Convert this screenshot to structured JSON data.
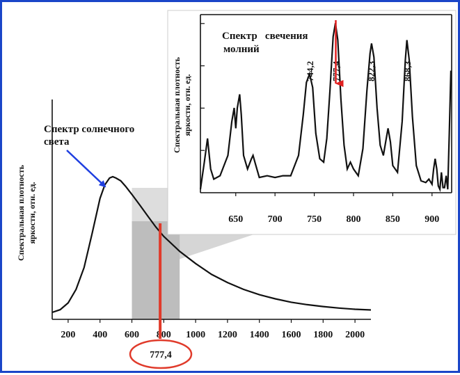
{
  "chart_data": [
    {
      "type": "line",
      "title": "Спектр солнечного света",
      "title_lines": [
        "Спектр солнечного",
        "света"
      ],
      "ylabel_lines": [
        "Спектральная плотность",
        "яркости, отн. ед."
      ],
      "xlabel": "",
      "xlim": [
        100,
        2100
      ],
      "ylim": [
        0,
        1
      ],
      "xticks": [
        200,
        400,
        600,
        800,
        1000,
        1200,
        1400,
        1600,
        1800,
        2000
      ],
      "series": [
        {
          "x": [
            100,
            150,
            200,
            250,
            300,
            350,
            400,
            430,
            460,
            480,
            500,
            530,
            560,
            600,
            650,
            700,
            750,
            800,
            900,
            1000,
            1100,
            1200,
            1300,
            1400,
            1500,
            1600,
            1700,
            1800,
            1900,
            2000,
            2100
          ],
          "values": [
            0.0,
            0.02,
            0.07,
            0.17,
            0.33,
            0.58,
            0.84,
            0.94,
            0.99,
            1.0,
            0.99,
            0.97,
            0.93,
            0.87,
            0.79,
            0.71,
            0.63,
            0.56,
            0.45,
            0.36,
            0.28,
            0.22,
            0.17,
            0.13,
            0.1,
            0.075,
            0.057,
            0.043,
            0.032,
            0.023,
            0.018
          ]
        }
      ],
      "highlight_band": [
        600,
        900
      ],
      "marker": {
        "x": 777.4,
        "label": "777,4"
      },
      "colors": {
        "curve": "#111111",
        "band": "#bdbdbd",
        "marker": "#e03a2a",
        "arrow": "#1f3fe0"
      }
    },
    {
      "type": "line",
      "title_lines": [
        "Спектр   свечения",
        "молний"
      ],
      "ylabel_lines": [
        "Спектральная плотность",
        "яркости, отн. ед."
      ],
      "xlabel": "",
      "xlim": [
        605,
        925
      ],
      "ylim": [
        0,
        1.05
      ],
      "xticks": [
        650,
        700,
        750,
        800,
        850,
        900
      ],
      "peak_labels": [
        "744,2",
        "777,4",
        "822,3",
        "868,3"
      ],
      "peak_positions": [
        744.2,
        777.4,
        822.3,
        868.3
      ],
      "arrow_at": 777.4,
      "series": [
        {
          "x": [
            605,
            610,
            614,
            618,
            622,
            630,
            640,
            645,
            648,
            650,
            652,
            655,
            657,
            660,
            665,
            670,
            672,
            675,
            680,
            690,
            700,
            710,
            720,
            730,
            736,
            740,
            744,
            748,
            752,
            757,
            762,
            766,
            770,
            774,
            777,
            780,
            784,
            788,
            792,
            796,
            800,
            806,
            812,
            817,
            821,
            823,
            826,
            830,
            834,
            838,
            841,
            844,
            847,
            850,
            856,
            862,
            866,
            868,
            871,
            875,
            880,
            886,
            892,
            896,
            900,
            902,
            904,
            906,
            908,
            910,
            912,
            914,
            916,
            918,
            920,
            922,
            924
          ],
          "values": [
            0.02,
            0.18,
            0.32,
            0.14,
            0.08,
            0.1,
            0.22,
            0.42,
            0.5,
            0.38,
            0.5,
            0.58,
            0.46,
            0.22,
            0.14,
            0.2,
            0.22,
            0.17,
            0.09,
            0.1,
            0.09,
            0.1,
            0.1,
            0.22,
            0.46,
            0.65,
            0.7,
            0.62,
            0.35,
            0.2,
            0.18,
            0.32,
            0.6,
            0.92,
            1.0,
            0.9,
            0.55,
            0.28,
            0.14,
            0.18,
            0.14,
            0.1,
            0.26,
            0.6,
            0.82,
            0.88,
            0.8,
            0.5,
            0.28,
            0.22,
            0.3,
            0.38,
            0.3,
            0.16,
            0.12,
            0.42,
            0.78,
            0.9,
            0.78,
            0.45,
            0.16,
            0.07,
            0.06,
            0.08,
            0.05,
            0.14,
            0.2,
            0.14,
            0.04,
            0.02,
            0.12,
            0.03,
            0.03,
            0.1,
            0.02,
            0.35,
            0.72
          ]
        }
      ],
      "colors": {
        "curve": "#111111",
        "arrow": "#e02020"
      }
    }
  ]
}
